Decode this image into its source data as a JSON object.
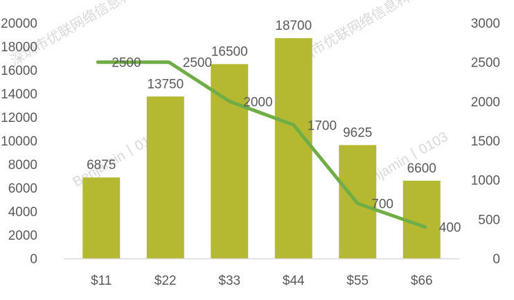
{
  "chart_data": {
    "type": "bar+line",
    "title": "",
    "xlabel": "",
    "ylabel": "",
    "categories": [
      "$11",
      "$22",
      "$33",
      "$44",
      "$55",
      "$66"
    ],
    "series": [
      {
        "type": "bar",
        "axis": "left",
        "values": [
          6875,
          13750,
          16500,
          18700,
          9625,
          6600
        ],
        "labels": [
          "6875",
          "13750",
          "16500",
          "18700",
          "9625",
          "6600"
        ],
        "color": "#b5b932"
      },
      {
        "type": "line",
        "axis": "right",
        "values": [
          2500,
          2500,
          2000,
          1700,
          700,
          400
        ],
        "labels": [
          "2500",
          "2500",
          "2000",
          "1700",
          "700",
          "400"
        ],
        "color": "#70ad47"
      }
    ],
    "y_left": {
      "lim": [
        0,
        20000
      ],
      "ticks": [
        "0",
        "2000",
        "4000",
        "6000",
        "8000",
        "10000",
        "12000",
        "14000",
        "16000",
        "18000",
        "20000"
      ]
    },
    "y_right": {
      "lim": [
        0,
        3000
      ],
      "ticks": [
        "0",
        "500",
        "1000",
        "1500",
        "2000",
        "2500",
        "3000"
      ]
    },
    "grid": false,
    "legend": "none"
  },
  "watermark": {
    "lines": [
      "深圳市优联网络信息科技",
      "Benjamin丨0103"
    ]
  }
}
